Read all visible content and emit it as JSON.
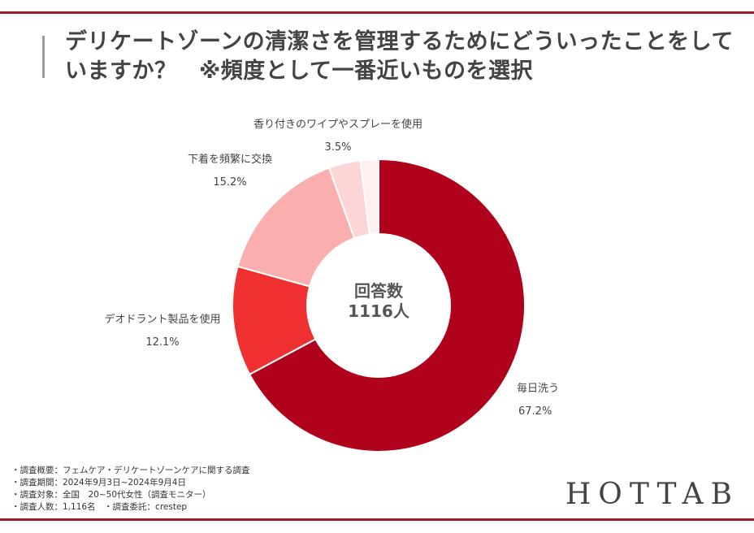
{
  "title": "デリケートゾーンの清潔さを管理するためにどういったことをしていますか？　※頻度として一番近いものを選択",
  "chart_data": {
    "type": "donut",
    "title": "デリケートゾーンの清潔さを管理するためにどういったことをしていますか？　※頻度として一番近いものを選択",
    "center_label": "回答数",
    "center_value": "1116人",
    "slices": [
      {
        "label": "毎日洗う",
        "value": 67.2,
        "value_label": "67.2%",
        "color": "#b0021d"
      },
      {
        "label": "デオドラント製品を使用",
        "value": 12.1,
        "value_label": "12.1%",
        "color": "#f03030"
      },
      {
        "label": "下着を頻繁に交換",
        "value": 15.2,
        "value_label": "15.2%",
        "color": "#fbaeae"
      },
      {
        "label": "香り付きのワイプやスプレーを使用",
        "value": 3.5,
        "value_label": "3.5%",
        "color": "#fcd6d6"
      },
      {
        "label": "",
        "value": 2.0,
        "value_label": "",
        "color": "#fff0f0"
      }
    ]
  },
  "footer": {
    "lines": [
      "・調査概要：フェムケア・デリケートゾーンケアに関する調査",
      "・調査期間：2024年9月3日~2024年9月4日",
      "・調査対象：全国　20~50代女性（調査モニター）",
      "・調査人数：1,116名　・調査委託：crestep"
    ]
  },
  "brand": "HOTTAB"
}
